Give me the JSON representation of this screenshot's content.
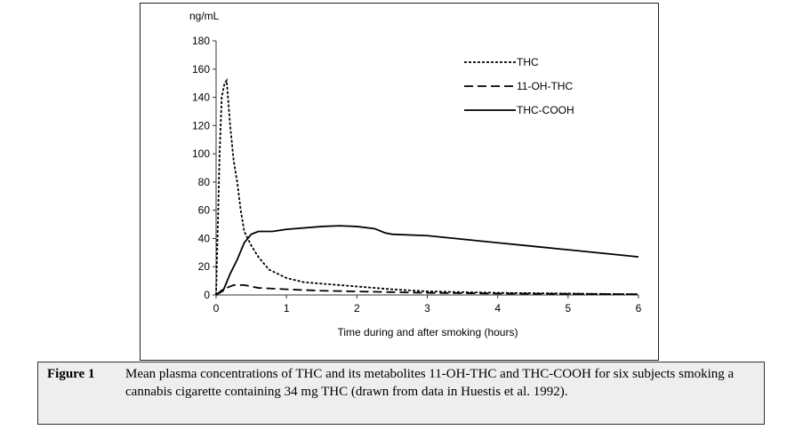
{
  "chart_data": {
    "type": "line",
    "title": "",
    "ylabel": "ng/mL",
    "xlabel": "Time during and after smoking (hours)",
    "xlim": [
      0,
      6
    ],
    "ylim": [
      0,
      180
    ],
    "xticks": [
      0,
      1,
      2,
      3,
      4,
      5,
      6
    ],
    "yticks": [
      0,
      20,
      40,
      60,
      80,
      100,
      120,
      140,
      160,
      180
    ],
    "grid": false,
    "legend_position": "top-right",
    "series": [
      {
        "name": "THC",
        "style": "dotted",
        "color": "#000000",
        "x": [
          0,
          0.02,
          0.05,
          0.08,
          0.12,
          0.15,
          0.2,
          0.25,
          0.3,
          0.35,
          0.4,
          0.5,
          0.6,
          0.75,
          1,
          1.25,
          1.5,
          2,
          2.5,
          3,
          4,
          5,
          6
        ],
        "y": [
          0,
          40,
          100,
          140,
          150,
          152,
          120,
          95,
          80,
          60,
          45,
          35,
          27,
          18,
          12,
          9,
          8,
          6,
          4,
          2.5,
          1.5,
          1,
          0.5
        ]
      },
      {
        "name": "11-OH-THC",
        "style": "dashed",
        "color": "#000000",
        "x": [
          0,
          0.1,
          0.25,
          0.4,
          0.6,
          1,
          1.5,
          2,
          2.5,
          3,
          4,
          5,
          6
        ],
        "y": [
          0,
          4,
          7,
          7,
          5,
          4,
          3,
          2.5,
          2,
          1.5,
          1,
          0.8,
          0.5
        ]
      },
      {
        "name": "THC-COOH",
        "style": "solid",
        "color": "#000000",
        "x": [
          0,
          0.1,
          0.2,
          0.3,
          0.4,
          0.5,
          0.6,
          0.8,
          1,
          1.5,
          1.75,
          2,
          2.25,
          2.4,
          2.5,
          3,
          3.5,
          4,
          4.5,
          5,
          5.5,
          6
        ],
        "y": [
          0,
          3,
          15,
          25,
          37,
          43,
          45,
          45,
          46.5,
          48.5,
          49,
          48.5,
          47,
          44,
          43,
          42,
          39.5,
          37,
          34.5,
          32,
          29.5,
          27
        ]
      }
    ]
  },
  "caption": {
    "label": "Figure 1",
    "text": "Mean plasma concentrations of THC and its metabolites 11-OH-THC and THC-COOH for six subjects smoking a cannabis cigarette containing 34 mg THC (drawn from data in Huestis et al. 1992)."
  }
}
